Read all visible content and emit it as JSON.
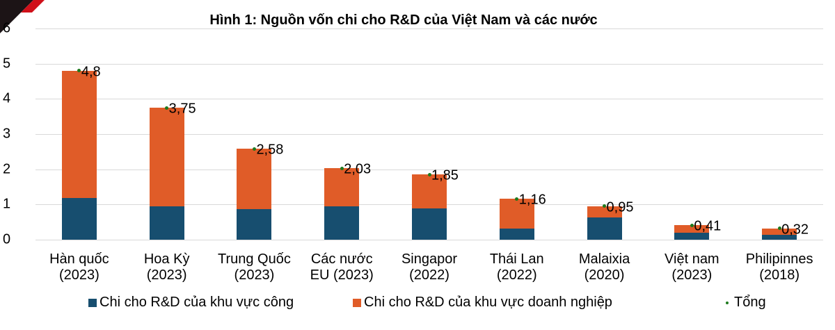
{
  "title": "Hình 1: Nguồn vốn chi cho R&D của Việt Nam và các nước",
  "colors": {
    "public": "#174e6f",
    "business": "#e05c28",
    "total": "#1e7a1e",
    "grid": "#d9d9d9"
  },
  "y_axis": {
    "ticks": [
      "0",
      "1",
      "2",
      "3",
      "4",
      "5",
      "6"
    ]
  },
  "categories": [
    {
      "line1": "Hàn quốc",
      "line2": "(2023)"
    },
    {
      "line1": "Hoa Kỳ",
      "line2": "(2023)"
    },
    {
      "line1": "Trung Quốc",
      "line2": "(2023)"
    },
    {
      "line1": "Các nước",
      "line2": "EU (2023)"
    },
    {
      "line1": "Singapor",
      "line2": "(2022)"
    },
    {
      "line1": "Thái Lan",
      "line2": "(2022)"
    },
    {
      "line1": "Malaixia",
      "line2": "(2020)"
    },
    {
      "line1": "Việt nam",
      "line2": "(2023)"
    },
    {
      "line1": "Philipinnes",
      "line2": "(2018)"
    }
  ],
  "total_labels": [
    "4,8",
    "3,75",
    "2,58",
    "2,03",
    "1,85",
    "1,16",
    "0,95",
    "0,41",
    "0,32"
  ],
  "legend": {
    "public": "Chi cho R&D của khu vực công",
    "business": "Chi cho R&D của khu vực doanh nghiệp",
    "total": "Tổng"
  },
  "chart_data": {
    "type": "bar",
    "stacked": true,
    "title": "Hình 1: Nguồn vốn chi cho R&D của Việt Nam và các nước",
    "xlabel": "",
    "ylabel": "",
    "ylim": [
      0,
      6
    ],
    "yticks": [
      0,
      1,
      2,
      3,
      4,
      5,
      6
    ],
    "grid": true,
    "legend_position": "bottom",
    "categories": [
      "Hàn quốc (2023)",
      "Hoa Kỳ (2023)",
      "Trung Quốc (2023)",
      "Các nước EU (2023)",
      "Singapor (2022)",
      "Thái Lan (2022)",
      "Malaixia (2020)",
      "Việt nam (2023)",
      "Philipinnes (2018)"
    ],
    "series": [
      {
        "name": "Chi cho R&D của khu vực công",
        "type": "bar",
        "values": [
          1.18,
          0.95,
          0.87,
          0.95,
          0.89,
          0.32,
          0.63,
          0.2,
          0.14
        ]
      },
      {
        "name": "Chi cho R&D của khu vực doanh nghiệp",
        "type": "bar",
        "values": [
          3.62,
          2.8,
          1.71,
          1.08,
          0.96,
          0.84,
          0.32,
          0.21,
          0.18
        ]
      },
      {
        "name": "Tổng",
        "type": "scatter",
        "values": [
          4.8,
          3.75,
          2.58,
          2.03,
          1.85,
          1.16,
          0.95,
          0.41,
          0.32
        ]
      }
    ]
  }
}
